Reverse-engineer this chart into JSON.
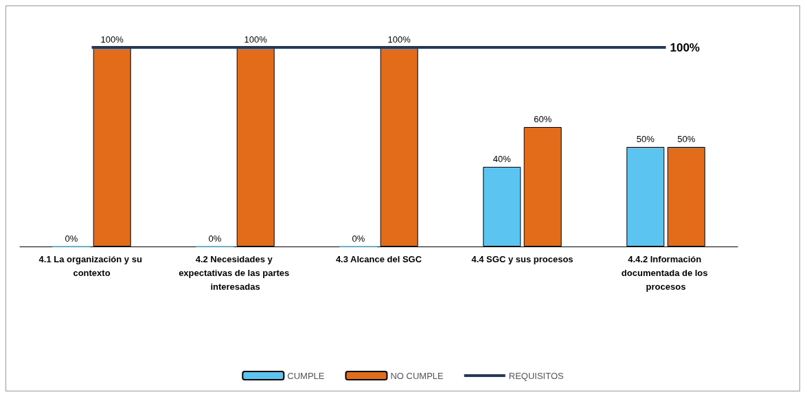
{
  "chart_data": {
    "type": "bar",
    "categories": [
      "4.1 La organización y su contexto",
      "4.2 Necesidades y expectativas de las partes interesadas",
      "4.3 Alcance del SGC",
      "4.4 SGC y sus procesos",
      "4.4.2 Información documentada de los procesos"
    ],
    "series": [
      {
        "name": "CUMPLE",
        "color": "#5bc4f0",
        "values": [
          0,
          0,
          0,
          40,
          50
        ],
        "value_labels": [
          "0%",
          "0%",
          "0%",
          "40%",
          "50%"
        ]
      },
      {
        "name": "NO CUMPLE",
        "color": "#e36c1a",
        "values": [
          100,
          100,
          100,
          60,
          50
        ],
        "value_labels": [
          "100%",
          "100%",
          "100%",
          "60%",
          "50%"
        ]
      },
      {
        "name": "REQUISITOS",
        "type": "line",
        "color": "#1f3864",
        "values": [
          100,
          100,
          100,
          100,
          100
        ],
        "value_labels": [
          null,
          null,
          null,
          null,
          "100%"
        ]
      }
    ],
    "legend": "bottom",
    "grid": false
  }
}
